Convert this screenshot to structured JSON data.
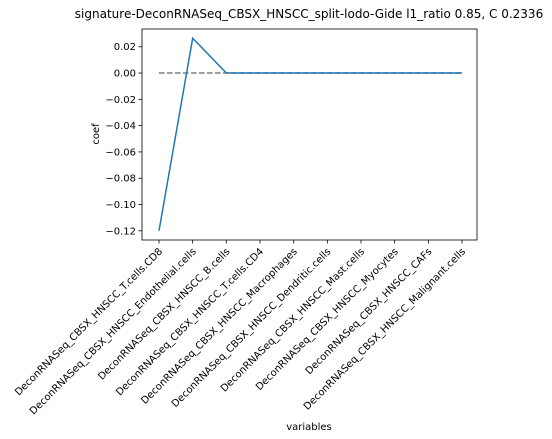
{
  "chart_data": {
    "type": "line",
    "title": "signature-DeconRNASeq_CBSX_HNSCC_split-lodo-Gide l1_ratio 0.85, C 0.2336",
    "xlabel": "variables",
    "ylabel": "coef",
    "categories": [
      "DeconRNASeq_CBSX_HNSCC_T.cells.CD8",
      "DeconRNASeq_CBSX_HNSCC_Endothelial.cells",
      "DeconRNASeq_CBSX_HNSCC_B.cells",
      "DeconRNASeq_CBSX_HNSCC_T.cells.CD4",
      "DeconRNASeq_CBSX_HNSCC_Macrophages",
      "DeconRNASeq_CBSX_HNSCC_Dendritic.cells",
      "DeconRNASeq_CBSX_HNSCC_Mast.cells",
      "DeconRNASeq_CBSX_HNSCC_Myocytes",
      "DeconRNASeq_CBSX_HNSCC_CAFs",
      "DeconRNASeq_CBSX_HNSCC_Malignant.cells"
    ],
    "series": [
      {
        "values": [
          -0.12,
          0.0265,
          0.0,
          0.0,
          0.0,
          0.0,
          0.0,
          0.0,
          0.0,
          0.0
        ],
        "color": "#1f77b4"
      }
    ],
    "reference_line": {
      "y": 0,
      "style": "dashed",
      "color": "#808080"
    },
    "ylim": [
      -0.127,
      0.0335
    ],
    "yticks": [
      0.02,
      0.0,
      -0.02,
      -0.04,
      -0.06,
      -0.08,
      -0.1,
      -0.12
    ],
    "ytick_labels": [
      "0.02",
      "0.00",
      "−0.02",
      "−0.04",
      "−0.06",
      "−0.08",
      "−0.10",
      "−0.12"
    ],
    "grid": false,
    "legend": "none"
  }
}
